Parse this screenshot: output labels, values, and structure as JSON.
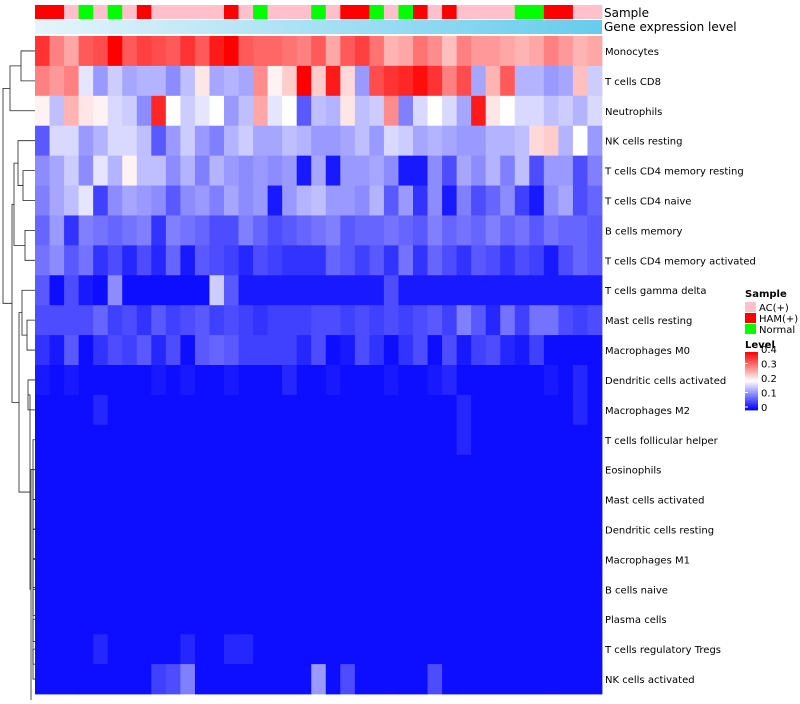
{
  "chart_data": {
    "type": "heatmap",
    "title": "",
    "annotations": {
      "sample_label": "Sample",
      "gene_label": "Gene expression level"
    },
    "legend": {
      "sample_title": "Sample",
      "level_title": "Level",
      "placement": "right",
      "sample_entries": [
        {
          "label": "AC(+)",
          "color": "#FFC0CB"
        },
        {
          "label": "HAM(+)",
          "color": "#FF0000"
        },
        {
          "label": "Normal",
          "color": "#00FF00"
        }
      ],
      "level_ticks": [
        {
          "label": "0.4",
          "value": 0.4
        },
        {
          "label": "0.3",
          "value": 0.3
        },
        {
          "label": "0.2",
          "value": 0.2
        },
        {
          "label": "0.1",
          "value": 0.1
        },
        {
          "label": "0",
          "value": 0
        }
      ]
    },
    "color_scale": {
      "min": 0,
      "mid": 0.2,
      "max": 0.4,
      "low": "#0000FF",
      "midColor": "#FFFFFF",
      "high": "#FF0000"
    },
    "sample_groups": [
      "HAM(+)",
      "HAM(+)",
      "AC(+)",
      "Normal",
      "AC(+)",
      "Normal",
      "AC(+)",
      "HAM(+)",
      "AC(+)",
      "AC(+)",
      "AC(+)",
      "AC(+)",
      "AC(+)",
      "HAM(+)",
      "AC(+)",
      "Normal",
      "AC(+)",
      "AC(+)",
      "AC(+)",
      "Normal",
      "AC(+)",
      "HAM(+)",
      "HAM(+)",
      "Normal",
      "AC(+)",
      "Normal",
      "HAM(+)",
      "AC(+)",
      "HAM(+)",
      "AC(+)",
      "AC(+)",
      "AC(+)",
      "AC(+)",
      "Normal",
      "Normal",
      "HAM(+)",
      "HAM(+)",
      "AC(+)",
      "AC(+)"
    ],
    "gene_level_color": "#66CCEE",
    "rows": [
      {
        "label": "Monocytes",
        "values": [
          0.36,
          0.3,
          0.27,
          0.33,
          0.34,
          0.4,
          0.33,
          0.35,
          0.34,
          0.33,
          0.36,
          0.33,
          0.38,
          0.4,
          0.33,
          0.32,
          0.32,
          0.31,
          0.3,
          0.33,
          0.27,
          0.33,
          0.35,
          0.31,
          0.26,
          0.27,
          0.31,
          0.29,
          0.25,
          0.3,
          0.28,
          0.28,
          0.27,
          0.26,
          0.27,
          0.3,
          0.28,
          0.26,
          0.27
        ]
      },
      {
        "label": "T cells CD8",
        "values": [
          0.3,
          0.28,
          0.3,
          0.18,
          0.12,
          0.16,
          0.13,
          0.14,
          0.14,
          0.11,
          0.15,
          0.22,
          0.13,
          0.14,
          0.13,
          0.29,
          0.21,
          0.24,
          0.4,
          0.24,
          0.38,
          0.23,
          0.12,
          0.34,
          0.36,
          0.37,
          0.39,
          0.36,
          0.3,
          0.34,
          0.13,
          0.26,
          0.33,
          0.14,
          0.14,
          0.12,
          0.13,
          0.25,
          0.16
        ]
      },
      {
        "label": "Neutrophils",
        "values": [
          0.21,
          0.15,
          0.26,
          0.22,
          0.21,
          0.17,
          0.16,
          0.11,
          0.37,
          0.2,
          0.16,
          0.18,
          0.2,
          0.12,
          0.15,
          0.27,
          0.18,
          0.2,
          0.07,
          0.15,
          0.14,
          0.22,
          0.15,
          0.16,
          0.29,
          0.1,
          0.17,
          0.2,
          0.17,
          0.13,
          0.38,
          0.22,
          0.2,
          0.17,
          0.17,
          0.15,
          0.16,
          0.14,
          0.17
        ]
      },
      {
        "label": "NK cells resting",
        "values": [
          0.07,
          0.17,
          0.17,
          0.12,
          0.14,
          0.17,
          0.17,
          0.15,
          0.07,
          0.12,
          0.16,
          0.12,
          0.1,
          0.14,
          0.16,
          0.13,
          0.13,
          0.15,
          0.14,
          0.12,
          0.12,
          0.13,
          0.15,
          0.12,
          0.17,
          0.16,
          0.13,
          0.14,
          0.13,
          0.12,
          0.12,
          0.14,
          0.14,
          0.15,
          0.23,
          0.24,
          0.14,
          0.2,
          0.12
        ]
      },
      {
        "label": "T cells CD4 memory resting",
        "values": [
          0.11,
          0.13,
          0.16,
          0.11,
          0.18,
          0.14,
          0.21,
          0.15,
          0.15,
          0.11,
          0.14,
          0.1,
          0.14,
          0.12,
          0.11,
          0.12,
          0.11,
          0.12,
          0.02,
          0.13,
          0.02,
          0.12,
          0.12,
          0.13,
          0.11,
          0.02,
          0.02,
          0.11,
          0.06,
          0.13,
          0.11,
          0.14,
          0.1,
          0.15,
          0.06,
          0.12,
          0.12,
          0.06,
          0.1
        ]
      },
      {
        "label": "T cells CD4 naive",
        "values": [
          0.1,
          0.13,
          0.15,
          0.18,
          0.05,
          0.11,
          0.13,
          0.12,
          0.11,
          0.07,
          0.11,
          0.12,
          0.1,
          0.13,
          0.11,
          0.12,
          0.02,
          0.12,
          0.14,
          0.15,
          0.12,
          0.12,
          0.11,
          0.14,
          0.07,
          0.12,
          0.04,
          0.11,
          0.02,
          0.1,
          0.06,
          0.08,
          0.11,
          0.05,
          0.02,
          0.11,
          0.13,
          0.06,
          0.08
        ]
      },
      {
        "label": "B cells memory",
        "values": [
          0.08,
          0.12,
          0.04,
          0.1,
          0.09,
          0.08,
          0.09,
          0.1,
          0.04,
          0.1,
          0.09,
          0.08,
          0.06,
          0.06,
          0.1,
          0.08,
          0.06,
          0.07,
          0.08,
          0.09,
          0.1,
          0.07,
          0.08,
          0.08,
          0.09,
          0.08,
          0.07,
          0.1,
          0.08,
          0.09,
          0.08,
          0.1,
          0.08,
          0.09,
          0.07,
          0.09,
          0.08,
          0.08,
          0.07
        ]
      },
      {
        "label": "T cells CD4 memory activated",
        "values": [
          0.09,
          0.11,
          0.07,
          0.09,
          0.04,
          0.06,
          0.03,
          0.06,
          0.03,
          0.08,
          0.02,
          0.07,
          0.06,
          0.05,
          0.03,
          0.06,
          0.05,
          0.04,
          0.04,
          0.04,
          0.08,
          0.07,
          0.05,
          0.07,
          0.04,
          0.09,
          0.04,
          0.08,
          0.06,
          0.04,
          0.07,
          0.06,
          0.04,
          0.06,
          0.05,
          0.02,
          0.06,
          0.08,
          0.07
        ]
      },
      {
        "label": "T cells gamma delta",
        "values": [
          0.07,
          0.01,
          0.06,
          0.02,
          0.01,
          0.11,
          0.01,
          0.01,
          0.01,
          0.01,
          0.01,
          0.01,
          0.16,
          0.07,
          0.02,
          0.02,
          0.02,
          0.02,
          0.02,
          0.02,
          0.02,
          0.02,
          0.02,
          0.02,
          0.06,
          0.02,
          0.02,
          0.02,
          0.02,
          0.02,
          0.02,
          0.02,
          0.02,
          0.02,
          0.02,
          0.02,
          0.02,
          0.02,
          0.02
        ]
      },
      {
        "label": "Mast cells resting",
        "values": [
          0.06,
          0.06,
          0.06,
          0.06,
          0.08,
          0.05,
          0.06,
          0.04,
          0.07,
          0.05,
          0.06,
          0.07,
          0.05,
          0.06,
          0.05,
          0.04,
          0.05,
          0.05,
          0.05,
          0.06,
          0.06,
          0.05,
          0.06,
          0.05,
          0.06,
          0.05,
          0.06,
          0.07,
          0.05,
          0.1,
          0.07,
          0.03,
          0.09,
          0.05,
          0.09,
          0.09,
          0.06,
          0.05,
          0.06
        ]
      },
      {
        "label": "Macrophages M0",
        "values": [
          0.04,
          0.02,
          0.07,
          0.01,
          0.04,
          0.06,
          0.05,
          0.07,
          0.03,
          0.06,
          0.01,
          0.07,
          0.08,
          0.07,
          0.05,
          0.05,
          0.05,
          0.05,
          0.03,
          0.06,
          0.01,
          0.02,
          0.06,
          0.04,
          0.01,
          0.04,
          0.06,
          0.01,
          0.06,
          0.02,
          0.05,
          0.06,
          0.03,
          0.02,
          0.05,
          0.01,
          0.01,
          0.01,
          0.01
        ]
      },
      {
        "label": "Dendritic cells activated",
        "values": [
          0.02,
          0.01,
          0.02,
          0.01,
          0.01,
          0.01,
          0.01,
          0.01,
          0.02,
          0.01,
          0.02,
          0.01,
          0.01,
          0.02,
          0.01,
          0.01,
          0.01,
          0.03,
          0.01,
          0.01,
          0.02,
          0.01,
          0.01,
          0.01,
          0.02,
          0.01,
          0.01,
          0.02,
          0.03,
          0.01,
          0.01,
          0.01,
          0.01,
          0.01,
          0.01,
          0.02,
          0.01,
          0.03,
          0.01
        ]
      },
      {
        "label": "Macrophages M2",
        "values": [
          0.01,
          0.01,
          0.01,
          0.01,
          0.03,
          0.01,
          0.01,
          0.01,
          0.01,
          0.01,
          0.01,
          0.01,
          0.01,
          0.01,
          0.01,
          0.01,
          0.01,
          0.01,
          0.01,
          0.01,
          0.01,
          0.01,
          0.01,
          0.01,
          0.01,
          0.01,
          0.01,
          0.01,
          0.01,
          0.03,
          0.01,
          0.01,
          0.01,
          0.01,
          0.01,
          0.01,
          0.01,
          0.03,
          0.01
        ]
      },
      {
        "label": "T cells follicular helper",
        "values": [
          0.01,
          0.01,
          0.01,
          0.01,
          0.01,
          0.01,
          0.01,
          0.01,
          0.01,
          0.01,
          0.01,
          0.01,
          0.01,
          0.01,
          0.01,
          0.01,
          0.01,
          0.01,
          0.01,
          0.01,
          0.01,
          0.01,
          0.01,
          0.01,
          0.01,
          0.01,
          0.01,
          0.01,
          0.01,
          0.03,
          0.01,
          0.01,
          0.01,
          0.01,
          0.01,
          0.01,
          0.01,
          0.01,
          0.01
        ]
      },
      {
        "label": "Eosinophils",
        "values": [
          0.01,
          0.01,
          0.01,
          0.01,
          0.01,
          0.01,
          0.01,
          0.01,
          0.01,
          0.01,
          0.01,
          0.01,
          0.01,
          0.01,
          0.01,
          0.01,
          0.01,
          0.01,
          0.01,
          0.01,
          0.01,
          0.01,
          0.01,
          0.01,
          0.01,
          0.01,
          0.01,
          0.01,
          0.01,
          0.01,
          0.01,
          0.01,
          0.01,
          0.01,
          0.01,
          0.01,
          0.01,
          0.01,
          0.01
        ]
      },
      {
        "label": "Mast cells activated",
        "values": [
          0.01,
          0.01,
          0.01,
          0.01,
          0.01,
          0.01,
          0.01,
          0.01,
          0.01,
          0.01,
          0.01,
          0.01,
          0.01,
          0.01,
          0.01,
          0.01,
          0.01,
          0.01,
          0.01,
          0.01,
          0.01,
          0.01,
          0.01,
          0.01,
          0.01,
          0.01,
          0.01,
          0.01,
          0.01,
          0.01,
          0.01,
          0.01,
          0.01,
          0.01,
          0.01,
          0.01,
          0.01,
          0.01,
          0.01
        ]
      },
      {
        "label": "Dendritic cells resting",
        "values": [
          0.01,
          0.01,
          0.01,
          0.01,
          0.01,
          0.01,
          0.01,
          0.01,
          0.01,
          0.01,
          0.01,
          0.01,
          0.01,
          0.01,
          0.01,
          0.01,
          0.01,
          0.01,
          0.01,
          0.01,
          0.01,
          0.01,
          0.01,
          0.01,
          0.01,
          0.01,
          0.01,
          0.01,
          0.01,
          0.01,
          0.01,
          0.01,
          0.01,
          0.01,
          0.01,
          0.01,
          0.01,
          0.01,
          0.01
        ]
      },
      {
        "label": "Macrophages M1",
        "values": [
          0.01,
          0.01,
          0.01,
          0.01,
          0.01,
          0.01,
          0.01,
          0.01,
          0.01,
          0.01,
          0.01,
          0.01,
          0.01,
          0.01,
          0.01,
          0.01,
          0.01,
          0.01,
          0.01,
          0.01,
          0.01,
          0.01,
          0.01,
          0.01,
          0.01,
          0.01,
          0.01,
          0.01,
          0.01,
          0.01,
          0.01,
          0.01,
          0.01,
          0.01,
          0.01,
          0.01,
          0.01,
          0.01,
          0.01
        ]
      },
      {
        "label": "B cells naive",
        "values": [
          0.01,
          0.01,
          0.01,
          0.01,
          0.01,
          0.01,
          0.01,
          0.01,
          0.01,
          0.01,
          0.01,
          0.01,
          0.01,
          0.01,
          0.01,
          0.01,
          0.01,
          0.01,
          0.01,
          0.01,
          0.01,
          0.01,
          0.01,
          0.01,
          0.01,
          0.01,
          0.01,
          0.01,
          0.01,
          0.01,
          0.01,
          0.01,
          0.01,
          0.01,
          0.01,
          0.01,
          0.01,
          0.01,
          0.01
        ]
      },
      {
        "label": "Plasma cells",
        "values": [
          0.01,
          0.01,
          0.01,
          0.01,
          0.01,
          0.01,
          0.01,
          0.01,
          0.01,
          0.01,
          0.01,
          0.01,
          0.01,
          0.01,
          0.01,
          0.01,
          0.01,
          0.01,
          0.01,
          0.01,
          0.01,
          0.01,
          0.01,
          0.01,
          0.01,
          0.01,
          0.01,
          0.01,
          0.01,
          0.01,
          0.01,
          0.01,
          0.01,
          0.01,
          0.01,
          0.01,
          0.01,
          0.01,
          0.01
        ]
      },
      {
        "label": "T cells regulatory  Tregs",
        "values": [
          0.01,
          0.01,
          0.01,
          0.01,
          0.03,
          0.01,
          0.01,
          0.01,
          0.01,
          0.01,
          0.03,
          0.01,
          0.01,
          0.03,
          0.03,
          0.01,
          0.01,
          0.01,
          0.01,
          0.01,
          0.01,
          0.01,
          0.01,
          0.01,
          0.01,
          0.01,
          0.01,
          0.01,
          0.01,
          0.01,
          0.01,
          0.01,
          0.01,
          0.01,
          0.01,
          0.01,
          0.01,
          0.01,
          0.01
        ]
      },
      {
        "label": "NK cells activated",
        "values": [
          0.01,
          0.01,
          0.01,
          0.01,
          0.01,
          0.01,
          0.01,
          0.01,
          0.05,
          0.06,
          0.1,
          0.01,
          0.01,
          0.01,
          0.01,
          0.01,
          0.01,
          0.01,
          0.01,
          0.12,
          0.01,
          0.06,
          0.01,
          0.01,
          0.01,
          0.01,
          0.01,
          0.06,
          0.01,
          0.01,
          0.01,
          0.01,
          0.01,
          0.01,
          0.01,
          0.01,
          0.01,
          0.01,
          0.01
        ]
      }
    ]
  }
}
